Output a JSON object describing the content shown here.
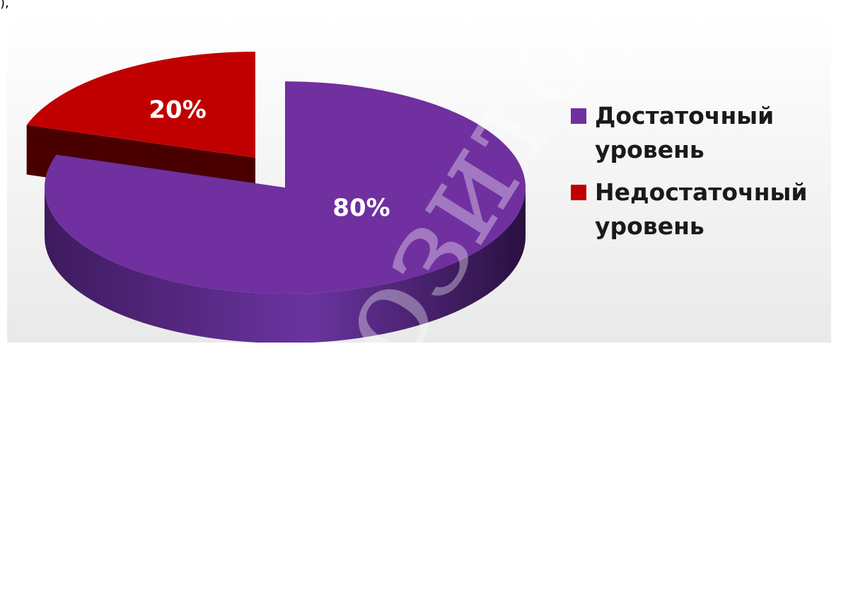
{
  "page": {
    "top_fragment": "),",
    "watermark": "Репозиторий"
  },
  "chart_data": {
    "type": "pie",
    "style": "3d-exploded",
    "categories": [
      "Достаточный уровень",
      "Недостаточный уровень"
    ],
    "values": [
      80,
      20
    ],
    "data_labels": [
      "80%",
      "20%"
    ],
    "colors": [
      "#7030a0",
      "#c00000"
    ],
    "legend_placement": "right",
    "legend": [
      {
        "line1": "Достаточный",
        "line2": "уровень",
        "color": "#7030a0"
      },
      {
        "line1": "Недостаточный",
        "line2": "уровень",
        "color": "#c00000"
      }
    ]
  }
}
